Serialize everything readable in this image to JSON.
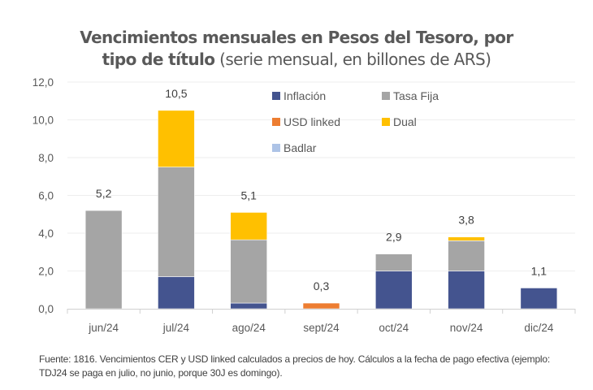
{
  "chart_data": {
    "type": "bar",
    "stacked": true,
    "title_bold": "Vencimientos mensuales en Pesos del Tesoro, por tipo de título",
    "title_normal": "(serie mensual, en billones de ARS)",
    "title_line1": "Vencimientos mensuales en Pesos del Tesoro, por",
    "title_line2_bold": "tipo de título",
    "xlabel": "",
    "ylabel": "",
    "ylim": [
      0,
      12
    ],
    "yticks": [
      0,
      2,
      4,
      6,
      8,
      10,
      12
    ],
    "ytick_labels": [
      "0,0",
      "2,0",
      "4,0",
      "6,0",
      "8,0",
      "10,0",
      "12,0"
    ],
    "grid": true,
    "legend_position": "top-right",
    "categories": [
      "jun/24",
      "jul/24",
      "ago/24",
      "sept/24",
      "oct/24",
      "nov/24",
      "dic/24"
    ],
    "series": [
      {
        "name": "Inflación",
        "color": "#44548f",
        "values": [
          0,
          1.7,
          0.3,
          0,
          2.0,
          2.0,
          1.1
        ]
      },
      {
        "name": "Tasa Fija",
        "color": "#a5a5a5",
        "values": [
          5.2,
          5.8,
          3.35,
          0,
          0.9,
          1.6,
          0
        ]
      },
      {
        "name": "USD linked",
        "color": "#ed7d31",
        "values": [
          0,
          0,
          0,
          0.3,
          0,
          0,
          0
        ]
      },
      {
        "name": "Dual",
        "color": "#ffc000",
        "values": [
          0,
          3.0,
          1.45,
          0,
          0,
          0.2,
          0
        ]
      },
      {
        "name": "Badlar",
        "color": "#adc3e6",
        "values": [
          0,
          0,
          0,
          0,
          0,
          0,
          0
        ]
      }
    ],
    "totals": [
      5.2,
      10.5,
      5.1,
      0.3,
      2.9,
      3.8,
      1.1
    ],
    "total_labels": [
      "5,2",
      "10,5",
      "5,1",
      "0,3",
      "2,9",
      "3,8",
      "1,1"
    ]
  },
  "source_note": "Fuente: 1816. Vencimientos CER y USD linked calculados a precios de hoy. Cálculos a la fecha de pago efectiva (ejemplo: TDJ24 se paga en julio, no junio, porque 30J es domingo)."
}
